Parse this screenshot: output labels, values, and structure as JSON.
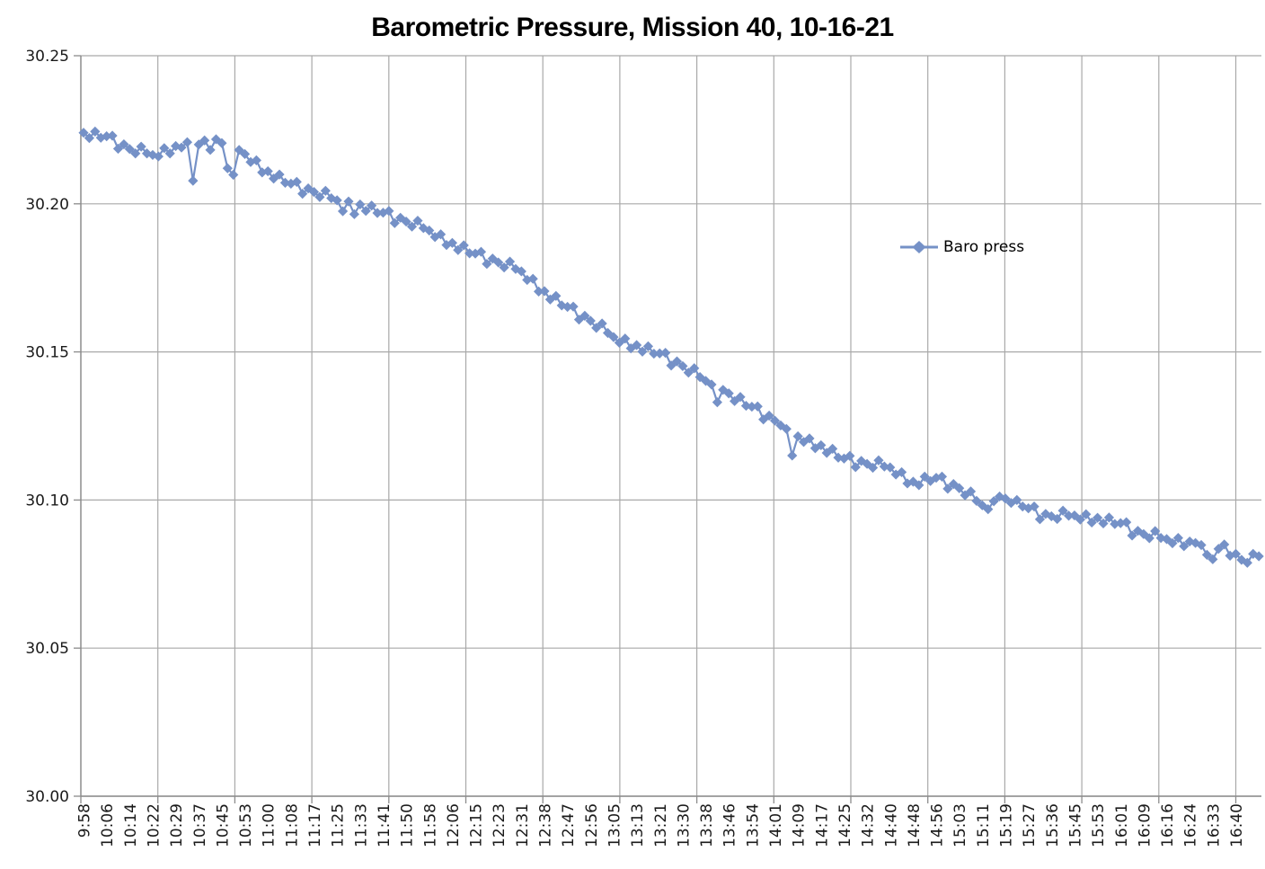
{
  "title": "Barometric Pressure, Mission 40, 10-16-21",
  "legend": {
    "label": "Baro press"
  },
  "colors": {
    "series": "#7591C7",
    "series_line": "#7591C7",
    "gridline": "#A9A9A9",
    "axis": "#8C8C8C",
    "tick_text": "#1A1A1A",
    "background": "#FFFFFF"
  },
  "chart_data": {
    "type": "line",
    "title": "Barometric Pressure, Mission 40, 10-16-21",
    "xlabel": "",
    "ylabel": "",
    "ylim": [
      30.0,
      30.25
    ],
    "y_ticks": [
      "30.00",
      "30.05",
      "30.10",
      "30.15",
      "30.20",
      "30.25"
    ],
    "grid": "both",
    "legend_position": "center-right",
    "marker": "diamond",
    "x_label_every": 4,
    "x_tick_labels": [
      "9:58",
      "10:06",
      "10:14",
      "10:22",
      "10:29",
      "10:37",
      "10:45",
      "10:53",
      "11:00",
      "11:08",
      "11:17",
      "11:25",
      "11:33",
      "11:41",
      "11:50",
      "11:58",
      "12:06",
      "12:15",
      "12:23",
      "12:31",
      "12:38",
      "12:47",
      "12:56",
      "13:05",
      "13:13",
      "13:21",
      "13:30",
      "13:38",
      "13:46",
      "13:54",
      "14:01",
      "14:09",
      "14:17",
      "14:25",
      "14:32",
      "14:40",
      "14:48",
      "14:56",
      "15:03",
      "15:11",
      "15:19",
      "15:27",
      "15:36",
      "15:45",
      "15:53",
      "16:01",
      "16:09",
      "16:16",
      "16:24",
      "16:33",
      "16:40"
    ],
    "series": [
      {
        "name": "Baro press",
        "color": "#7591C7",
        "values": [
          30.224,
          30.2222,
          30.2244,
          30.2223,
          30.2228,
          30.223,
          30.2186,
          30.2201,
          30.2185,
          30.217,
          30.2193,
          30.217,
          30.2165,
          30.216,
          30.2188,
          30.217,
          30.2195,
          30.219,
          30.2208,
          30.2078,
          30.22,
          30.2214,
          30.2182,
          30.2218,
          30.2205,
          30.212,
          30.2098,
          30.2182,
          30.2168,
          30.2141,
          30.2147,
          30.2106,
          30.211,
          30.2085,
          30.2099,
          30.2071,
          30.2068,
          30.2074,
          30.2034,
          30.2052,
          30.204,
          30.2023,
          30.2044,
          30.2019,
          30.2012,
          30.1975,
          30.2008,
          30.1965,
          30.1998,
          30.1976,
          30.1994,
          30.1969,
          30.197,
          30.1976,
          30.1935,
          30.1953,
          30.194,
          30.1923,
          30.1943,
          30.1918,
          30.191,
          30.1888,
          30.1897,
          30.1861,
          30.1868,
          30.1844,
          30.186,
          30.1833,
          30.1832,
          30.1838,
          30.1797,
          30.1815,
          30.1802,
          30.1785,
          30.1805,
          30.178,
          30.1772,
          30.1743,
          30.1747,
          30.1704,
          30.1705,
          30.1677,
          30.1689,
          30.1657,
          30.1652,
          30.1653,
          30.1609,
          30.1622,
          30.1605,
          30.1581,
          30.1596,
          30.1564,
          30.155,
          30.1531,
          30.1545,
          30.1512,
          30.1523,
          30.1501,
          30.1519,
          30.1494,
          30.1495,
          30.1497,
          30.1454,
          30.1468,
          30.1452,
          30.143,
          30.1445,
          30.1415,
          30.1402,
          30.139,
          30.133,
          30.1372,
          30.136,
          30.1334,
          30.1348,
          30.1318,
          30.1315,
          30.1316,
          30.1272,
          30.1285,
          30.1268,
          30.1252,
          30.124,
          30.115,
          30.1215,
          30.1196,
          30.1208,
          30.1175,
          30.1185,
          30.1159,
          30.1173,
          30.1143,
          30.114,
          30.1149,
          30.1111,
          30.1132,
          30.1122,
          30.1109,
          30.1134,
          30.1113,
          30.111,
          30.1086,
          30.1094,
          30.1056,
          30.1062,
          30.105,
          30.1079,
          30.1064,
          30.1075,
          30.1079,
          30.1038,
          30.1054,
          30.104,
          30.1016,
          30.1029,
          30.0997,
          30.0982,
          30.0969,
          30.0996,
          30.1012,
          30.1005,
          30.099,
          30.1,
          30.0978,
          30.0972,
          30.0978,
          30.0935,
          30.0953,
          30.0945,
          30.0936,
          30.0964,
          30.0947,
          30.0948,
          30.0934,
          30.0952,
          30.0924,
          30.094,
          30.0921,
          30.0941,
          30.0919,
          30.0922,
          30.0925,
          30.088,
          30.0896,
          30.0885,
          30.0871,
          30.0895,
          30.0872,
          30.0868,
          30.0854,
          30.0872,
          30.0844,
          30.086,
          30.0855,
          30.0848,
          30.0815,
          30.08,
          30.0835,
          30.085,
          30.0812,
          30.0818,
          30.0798,
          30.0788,
          30.0818,
          30.081
        ]
      }
    ]
  }
}
